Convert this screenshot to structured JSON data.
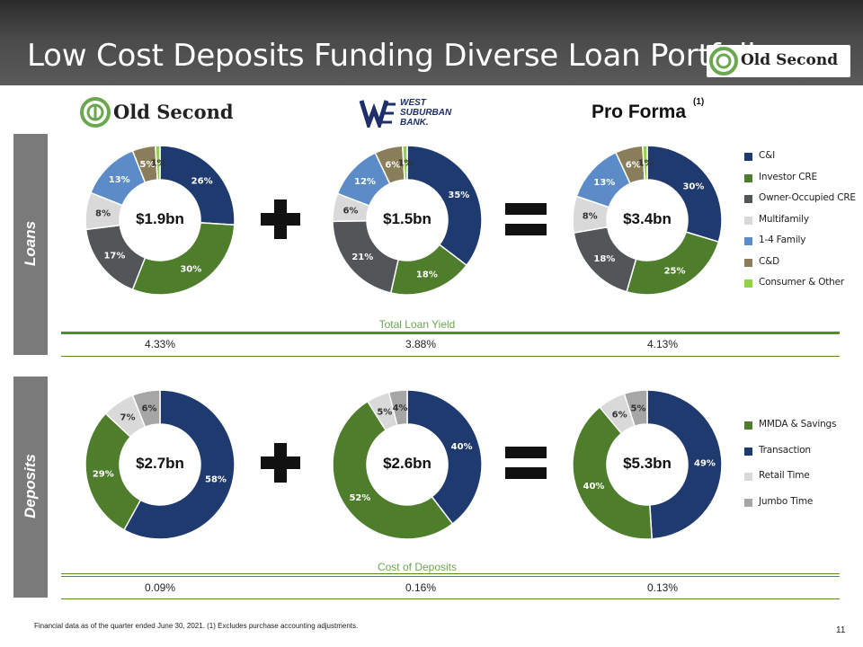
{
  "title": "Low Cost Deposits Funding Diverse Loan Portfolio",
  "header_logo": {
    "text": "Old Second"
  },
  "logos": {
    "old_second": "Old Second",
    "west_suburban": [
      "WEST",
      "SUBURBAN",
      "BANK."
    ]
  },
  "pro_forma": {
    "title": "Pro Forma",
    "footnote_ref": "(1)"
  },
  "sections": {
    "loans": "Loans",
    "deposits": "Deposits"
  },
  "colors": {
    "navy": "#1f3a6e",
    "green": "#4e7d2b",
    "dark_gray": "#525659",
    "light_gray": "#d9d9d9",
    "blue": "#5b8cc7",
    "olive": "#8a7d5a",
    "light_green": "#92d050",
    "mid_gray": "#a6a6a6",
    "rule_green": "#548b2e"
  },
  "chart_data": [
    {
      "type": "pie",
      "id": "loans-old-second",
      "center_label": "$1.9bn",
      "categories": [
        "C&I",
        "Investor CRE",
        "Owner-Occupied CRE",
        "Multifamily",
        "1-4 Family",
        "C&D",
        "Consumer & Other"
      ],
      "values": [
        26,
        30,
        17,
        8,
        13,
        5,
        1
      ],
      "labels": [
        "26%",
        "30%",
        "17%",
        "8%",
        "13%",
        "5%",
        "1%"
      ]
    },
    {
      "type": "pie",
      "id": "loans-west-suburban",
      "center_label": "$1.5bn",
      "categories": [
        "C&I",
        "Investor CRE",
        "Owner-Occupied CRE",
        "Multifamily",
        "1-4 Family",
        "C&D",
        "Consumer & Other"
      ],
      "values": [
        35,
        18,
        21,
        6,
        12,
        6,
        1
      ],
      "labels": [
        "35%",
        "18%",
        "21%",
        "6%",
        "12%",
        "6%",
        "1%"
      ]
    },
    {
      "type": "pie",
      "id": "loans-pro-forma",
      "center_label": "$3.4bn",
      "categories": [
        "C&I",
        "Investor CRE",
        "Owner-Occupied CRE",
        "Multifamily",
        "1-4 Family",
        "C&D",
        "Consumer & Other"
      ],
      "values": [
        30,
        25,
        18,
        8,
        13,
        6,
        1
      ],
      "labels": [
        "30%",
        "25%",
        "18%",
        "8%",
        "13%",
        "6%",
        "1%"
      ]
    },
    {
      "type": "pie",
      "id": "deposits-old-second",
      "center_label": "$2.7bn",
      "categories": [
        "Transaction",
        "MMDA & Savings",
        "Retail Time",
        "Jumbo Time"
      ],
      "values": [
        58,
        29,
        7,
        6
      ],
      "labels": [
        "58%",
        "29%",
        "7%",
        "6%"
      ]
    },
    {
      "type": "pie",
      "id": "deposits-west-suburban",
      "center_label": "$2.6bn",
      "categories": [
        "Transaction",
        "MMDA & Savings",
        "Retail Time",
        "Jumbo Time"
      ],
      "values": [
        40,
        52,
        5,
        4
      ],
      "labels": [
        "40%",
        "52%",
        "5%",
        "4%"
      ]
    },
    {
      "type": "pie",
      "id": "deposits-pro-forma",
      "center_label": "$5.3bn",
      "categories": [
        "Transaction",
        "MMDA & Savings",
        "Retail Time",
        "Jumbo Time"
      ],
      "values": [
        49,
        40,
        6,
        5
      ],
      "labels": [
        "49%",
        "40%",
        "6%",
        "5%"
      ]
    }
  ],
  "loan_legend": [
    "C&I",
    "Investor CRE",
    "Owner-Occupied CRE",
    "Multifamily",
    "1-4 Family",
    "C&D",
    "Consumer & Other"
  ],
  "deposit_legend": [
    "MMDA & Savings",
    "Transaction",
    "Retail Time",
    "Jumbo Time"
  ],
  "total_loan_yield": {
    "title": "Total Loan Yield",
    "values": [
      "4.33%",
      "3.88%",
      "4.13%"
    ]
  },
  "cost_of_deposits": {
    "title": "Cost of Deposits",
    "values": [
      "0.09%",
      "0.16%",
      "0.13%"
    ]
  },
  "footnote": "Financial data as of the quarter ended June 30, 2021. (1) Excludes purchase accounting adjustments.",
  "page_number": "11"
}
